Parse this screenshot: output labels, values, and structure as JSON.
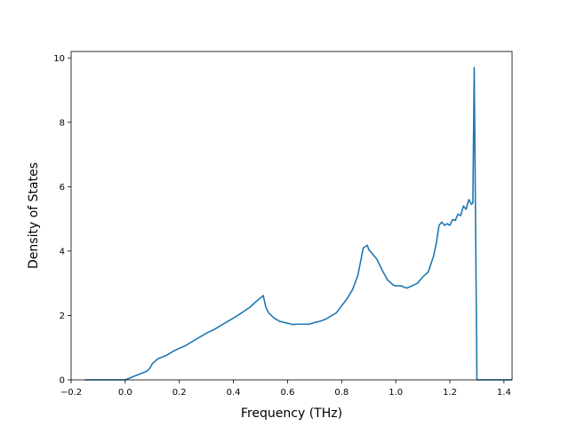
{
  "chart_data": {
    "type": "line",
    "title": "",
    "xlabel": "Frequency (THz)",
    "ylabel": "Density of States",
    "xlim": [
      -0.2,
      1.43
    ],
    "ylim": [
      0,
      10.2
    ],
    "grid": false,
    "legend": "none",
    "xticks": [
      -0.2,
      0.0,
      0.2,
      0.4,
      0.6,
      0.8,
      1.0,
      1.2,
      1.4
    ],
    "xtick_labels": [
      "−0.2",
      "0.0",
      "0.2",
      "0.4",
      "0.6",
      "0.8",
      "1.0",
      "1.2",
      "1.4"
    ],
    "yticks": [
      0,
      2,
      4,
      6,
      8,
      10
    ],
    "ytick_labels": [
      "0",
      "2",
      "4",
      "6",
      "8",
      "10"
    ],
    "line_color": "#1f77b4",
    "series": [
      {
        "x": [
          -0.15,
          0.0,
          0.02,
          0.05,
          0.08,
          0.09,
          0.1,
          0.12,
          0.15,
          0.18,
          0.2,
          0.22,
          0.25,
          0.28,
          0.3,
          0.33,
          0.36,
          0.4,
          0.43,
          0.46,
          0.49,
          0.505,
          0.51,
          0.52,
          0.53,
          0.55,
          0.57,
          0.6,
          0.62,
          0.64,
          0.66,
          0.68,
          0.7,
          0.72,
          0.74,
          0.76,
          0.78,
          0.8,
          0.82,
          0.84,
          0.86,
          0.88,
          0.895,
          0.9,
          0.91,
          0.93,
          0.95,
          0.97,
          0.99,
          1.0,
          1.02,
          1.04,
          1.06,
          1.08,
          1.1,
          1.12,
          1.14,
          1.15,
          1.16,
          1.17,
          1.18,
          1.19,
          1.2,
          1.21,
          1.22,
          1.23,
          1.24,
          1.25,
          1.26,
          1.27,
          1.28,
          1.285,
          1.29,
          1.3,
          1.305,
          1.32,
          1.35,
          1.38,
          1.4,
          1.43
        ],
        "y": [
          0,
          0,
          0.07,
          0.17,
          0.27,
          0.35,
          0.5,
          0.65,
          0.75,
          0.9,
          0.98,
          1.05,
          1.2,
          1.35,
          1.45,
          1.57,
          1.72,
          1.92,
          2.08,
          2.25,
          2.48,
          2.58,
          2.62,
          2.25,
          2.08,
          1.92,
          1.82,
          1.76,
          1.72,
          1.73,
          1.73,
          1.73,
          1.78,
          1.82,
          1.88,
          1.98,
          2.08,
          2.3,
          2.52,
          2.8,
          3.25,
          4.1,
          4.18,
          4.05,
          3.95,
          3.75,
          3.4,
          3.1,
          2.95,
          2.92,
          2.92,
          2.85,
          2.92,
          3.0,
          3.2,
          3.35,
          3.85,
          4.25,
          4.8,
          4.9,
          4.8,
          4.85,
          4.8,
          4.98,
          4.95,
          5.15,
          5.1,
          5.4,
          5.3,
          5.6,
          5.45,
          5.5,
          9.7,
          0,
          0,
          0,
          0,
          0,
          0,
          0
        ]
      }
    ]
  }
}
